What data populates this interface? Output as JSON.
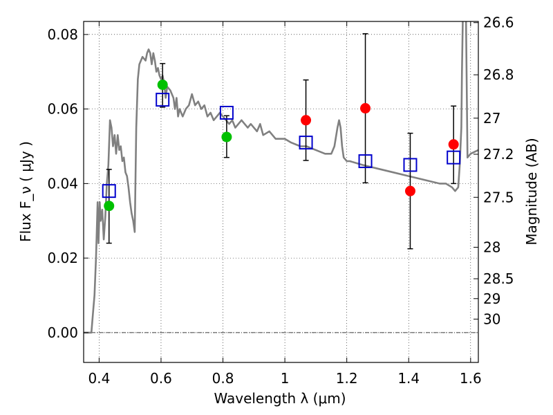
{
  "chart_data": {
    "type": "scatter",
    "xlabel": "Wavelength  λ (μm)",
    "ylabel": "Flux  F_ν  ( μJy )",
    "ylabel_right": "Magnitude (AB)",
    "xlim": [
      0.35,
      1.625
    ],
    "ylim": [
      -0.008,
      0.0835
    ],
    "x_ticks": [
      0.4,
      0.6,
      0.8,
      1.0,
      1.2,
      1.4,
      1.6
    ],
    "x_tick_labels": [
      "0.4",
      "0.6",
      "0.8",
      "1",
      "1.2",
      "1.4",
      "1.6"
    ],
    "y_ticks": [
      0.0,
      0.02,
      0.04,
      0.06,
      0.08
    ],
    "y_tick_labels": [
      "0.00",
      "0.02",
      "0.04",
      "0.06",
      "0.08"
    ],
    "right_ticks": [
      {
        "mag": 26.6,
        "label": "26.6"
      },
      {
        "mag": 26.8,
        "label": "26.8"
      },
      {
        "mag": 27.0,
        "label": "27"
      },
      {
        "mag": 27.2,
        "label": "27.2"
      },
      {
        "mag": 27.5,
        "label": "27.5"
      },
      {
        "mag": 28.0,
        "label": "28"
      },
      {
        "mag": 28.5,
        "label": "28.5"
      },
      {
        "mag": 29.0,
        "label": "29"
      },
      {
        "mag": 30.0,
        "label": "30"
      }
    ],
    "grid": true,
    "zero_line": true,
    "colors": {
      "template": "#808080",
      "detected": "#00c000",
      "undetected": "#ff0000",
      "model": "#0000cc",
      "errorbar": "#000000"
    },
    "template_spectrum": {
      "x": [
        0.35,
        0.37,
        0.375,
        0.38,
        0.385,
        0.39,
        0.395,
        0.398,
        0.402,
        0.405,
        0.41,
        0.415,
        0.42,
        0.425,
        0.43,
        0.435,
        0.44,
        0.445,
        0.45,
        0.455,
        0.46,
        0.465,
        0.47,
        0.475,
        0.48,
        0.485,
        0.49,
        0.495,
        0.5,
        0.505,
        0.51,
        0.515,
        0.52,
        0.525,
        0.53,
        0.54,
        0.55,
        0.555,
        0.56,
        0.565,
        0.57,
        0.575,
        0.58,
        0.585,
        0.59,
        0.595,
        0.6,
        0.605,
        0.61,
        0.615,
        0.62,
        0.63,
        0.64,
        0.645,
        0.65,
        0.655,
        0.66,
        0.67,
        0.68,
        0.69,
        0.7,
        0.71,
        0.72,
        0.73,
        0.74,
        0.75,
        0.76,
        0.77,
        0.78,
        0.79,
        0.8,
        0.81,
        0.82,
        0.83,
        0.84,
        0.85,
        0.86,
        0.87,
        0.88,
        0.89,
        0.9,
        0.91,
        0.92,
        0.93,
        0.95,
        0.97,
        1.0,
        1.02,
        1.05,
        1.07,
        1.1,
        1.13,
        1.15,
        1.16,
        1.17,
        1.175,
        1.18,
        1.185,
        1.19,
        1.2,
        1.21,
        1.25,
        1.3,
        1.35,
        1.4,
        1.45,
        1.5,
        1.52,
        1.54,
        1.55,
        1.56,
        1.565,
        1.57,
        1.572,
        1.575,
        1.578,
        1.582,
        1.585,
        1.59,
        1.6,
        1.625
      ],
      "y": [
        0.0,
        0.0,
        0.0,
        0.005,
        0.01,
        0.02,
        0.035,
        0.024,
        0.035,
        0.03,
        0.033,
        0.025,
        0.031,
        0.04,
        0.045,
        0.057,
        0.055,
        0.05,
        0.053,
        0.048,
        0.053,
        0.049,
        0.05,
        0.046,
        0.047,
        0.043,
        0.042,
        0.039,
        0.035,
        0.032,
        0.03,
        0.027,
        0.055,
        0.068,
        0.072,
        0.074,
        0.073,
        0.075,
        0.076,
        0.075,
        0.072,
        0.075,
        0.073,
        0.07,
        0.071,
        0.069,
        0.068,
        0.069,
        0.067,
        0.063,
        0.066,
        0.065,
        0.063,
        0.06,
        0.063,
        0.058,
        0.06,
        0.058,
        0.06,
        0.061,
        0.064,
        0.061,
        0.062,
        0.06,
        0.061,
        0.058,
        0.059,
        0.057,
        0.058,
        0.059,
        0.058,
        0.057,
        0.056,
        0.057,
        0.055,
        0.056,
        0.057,
        0.056,
        0.055,
        0.056,
        0.055,
        0.054,
        0.056,
        0.053,
        0.054,
        0.052,
        0.052,
        0.051,
        0.05,
        0.05,
        0.049,
        0.048,
        0.048,
        0.05,
        0.055,
        0.057,
        0.055,
        0.05,
        0.047,
        0.046,
        0.046,
        0.045,
        0.044,
        0.043,
        0.042,
        0.041,
        0.04,
        0.04,
        0.039,
        0.038,
        0.039,
        0.045,
        0.055,
        0.07,
        0.085,
        0.085,
        0.085,
        0.085,
        0.047,
        0.048,
        0.049
      ]
    },
    "series": [
      {
        "name": "",
        "role": "model",
        "marker": "open-square",
        "points": [
          [
            0.432,
            0.038
          ],
          [
            0.605,
            0.0625
          ],
          [
            0.812,
            0.059
          ],
          [
            1.068,
            0.051
          ],
          [
            1.26,
            0.046
          ],
          [
            1.405,
            0.045
          ],
          [
            1.545,
            0.047
          ]
        ]
      },
      {
        "name": "",
        "role": "detected",
        "marker": "filled-circle",
        "points": [
          [
            0.432,
            0.034
          ],
          [
            0.605,
            0.0665
          ],
          [
            0.812,
            0.0525
          ]
        ]
      },
      {
        "name": "",
        "role": "undetected",
        "marker": "filled-circle",
        "points": [
          [
            1.068,
            0.057
          ],
          [
            1.26,
            0.0602
          ],
          [
            1.405,
            0.038
          ],
          [
            1.545,
            0.0505
          ]
        ]
      }
    ],
    "errorbars": [
      {
        "x": 0.432,
        "ylow": 0.024,
        "yhigh": 0.0438
      },
      {
        "x": 0.605,
        "ylow": 0.0605,
        "yhigh": 0.0722
      },
      {
        "x": 0.812,
        "ylow": 0.047,
        "yhigh": 0.0582
      },
      {
        "x": 1.068,
        "ylow": 0.0462,
        "yhigh": 0.0678
      },
      {
        "x": 1.26,
        "ylow": 0.0402,
        "yhigh": 0.0802
      },
      {
        "x": 1.405,
        "ylow": 0.0225,
        "yhigh": 0.0535
      },
      {
        "x": 1.545,
        "ylow": 0.04,
        "yhigh": 0.0608
      }
    ]
  }
}
